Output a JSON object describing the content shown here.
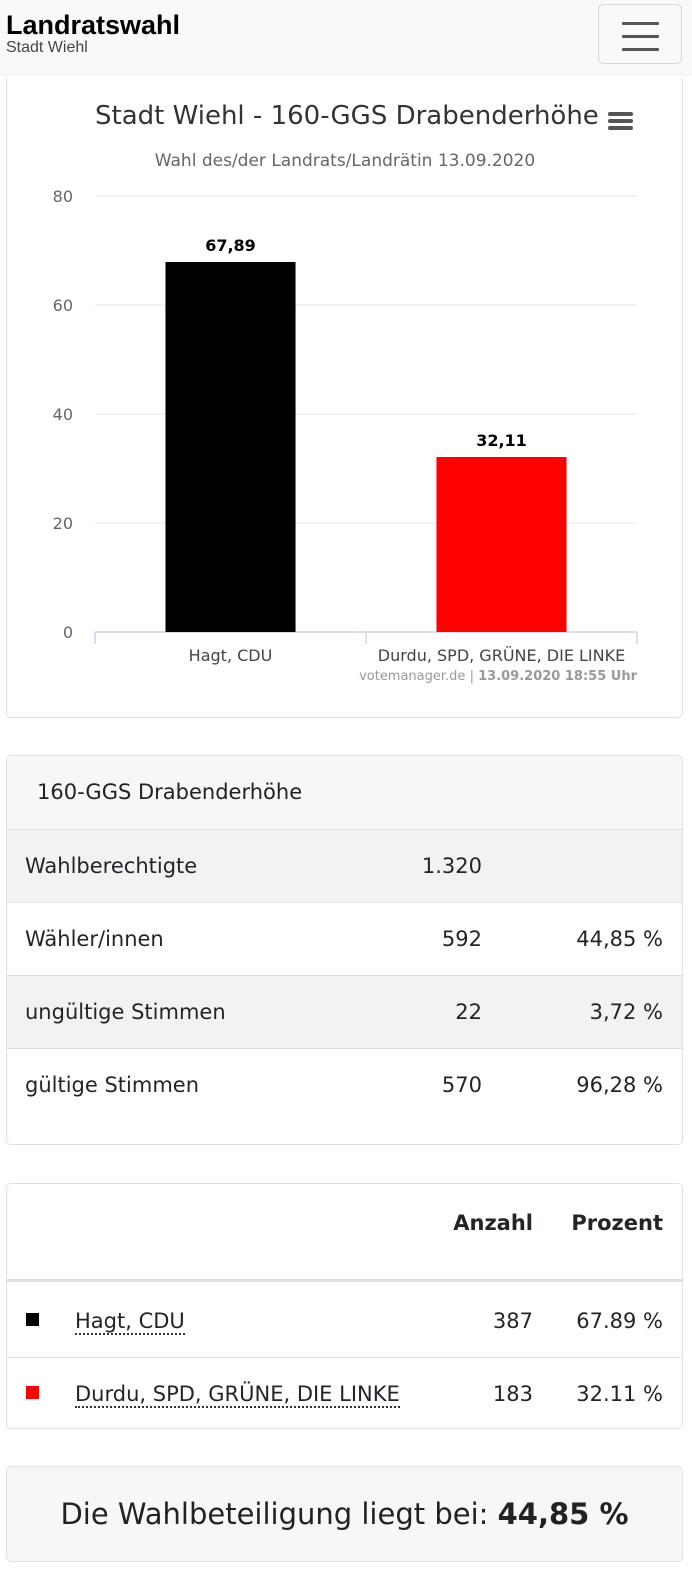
{
  "navbar": {
    "title": "Landratswahl",
    "subtitle": "Stadt Wiehl",
    "menu_icon": "hamburger-icon"
  },
  "chart_data": {
    "type": "bar",
    "title": "Stadt Wiehl - 160-GGS Drabenderhöhe",
    "subtitle": "Wahl des/der Landrats/Landrätin 13.09.2020",
    "categories": [
      "Hagt, CDU",
      "Durdu, SPD, GRÜNE, DIE LINKE"
    ],
    "values": [
      67.89,
      32.11
    ],
    "data_labels": [
      "67,89",
      "32,11"
    ],
    "colors": [
      "#000000",
      "#ff0000"
    ],
    "ylim": [
      0,
      80
    ],
    "yticks": [
      "0",
      "20",
      "40",
      "60",
      "80"
    ],
    "grid": true,
    "credit_site": "votemanager.de",
    "credit_sep": "|",
    "credit_time": "13.09.2020 18:55 Uhr",
    "menu_icon": "hamburger-icon"
  },
  "stats": {
    "heading": "160-GGS Drabenderhöhe",
    "rows": [
      {
        "label": "Wahlberechtigte",
        "count": "1.320",
        "percent": ""
      },
      {
        "label": "Wähler/innen",
        "count": "592",
        "percent": "44,85 %"
      },
      {
        "label": "ungültige Stimmen",
        "count": "22",
        "percent": "3,72 %"
      },
      {
        "label": "gültige Stimmen",
        "count": "570",
        "percent": "96,28 %"
      }
    ]
  },
  "results": {
    "header_count": "Anzahl",
    "header_percent": "Prozent",
    "rows": [
      {
        "name": "Hagt, CDU",
        "count": "387",
        "percent": "67.89 %",
        "color": "#000000"
      },
      {
        "name": "Durdu, SPD, GRÜNE, DIE LINKE",
        "count": "183",
        "percent": "32.11 %",
        "color": "#ff0000"
      }
    ]
  },
  "turnout": {
    "text": "Die Wahlbeteiligung liegt bei:",
    "value": "44,85 %"
  }
}
